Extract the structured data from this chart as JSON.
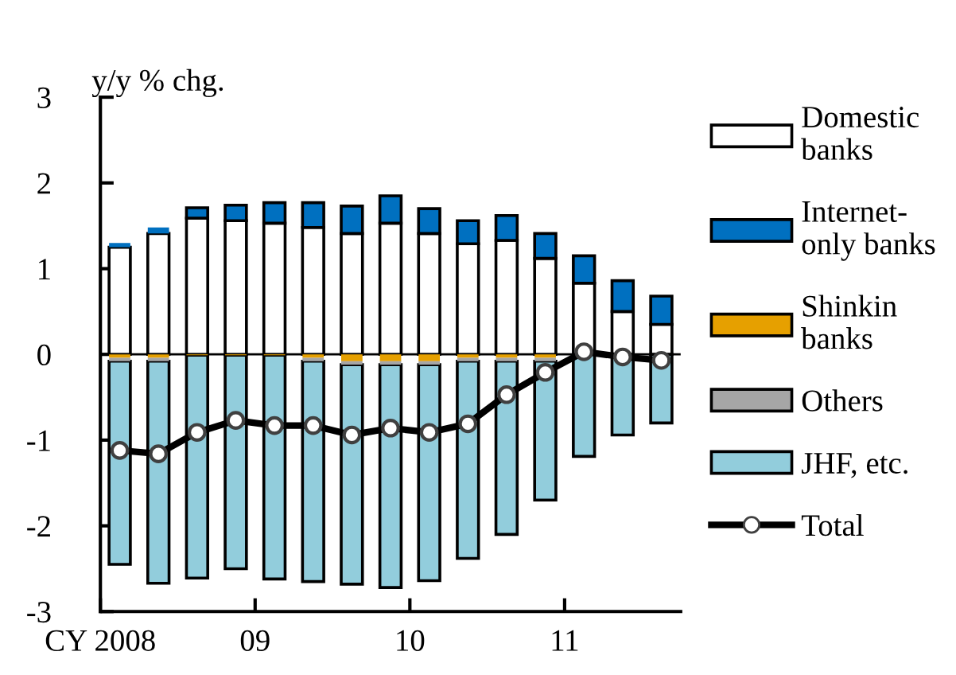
{
  "chart_data": {
    "type": "bar",
    "stacked": true,
    "ylabel": "y/y % chg.",
    "x": [
      2008.125,
      2008.375,
      2008.625,
      2008.875,
      2009.125,
      2009.375,
      2009.625,
      2009.875,
      2010.125,
      2010.375,
      2010.625,
      2010.875,
      2011.125,
      2011.375,
      2011.625
    ],
    "xlim": [
      2008,
      2011.75
    ],
    "xticks": [
      {
        "value": 2008,
        "label": "CY 2008"
      },
      {
        "value": 2009,
        "label": "09"
      },
      {
        "value": 2010,
        "label": "10"
      },
      {
        "value": 2011,
        "label": "11"
      }
    ],
    "ylim": [
      -3,
      3
    ],
    "yticks": [
      -3,
      -2,
      -1,
      0,
      1,
      2,
      3
    ],
    "grid": false,
    "legend": "right",
    "ref_lines": [
      {
        "axis": "y",
        "value": 0,
        "label": null
      }
    ],
    "series": [
      {
        "name": "Domestic\nbanks",
        "color": "#ffffff",
        "values": [
          1.25,
          1.41,
          1.59,
          1.56,
          1.53,
          1.48,
          1.41,
          1.53,
          1.41,
          1.29,
          1.33,
          1.12,
          0.83,
          0.5,
          0.35
        ]
      },
      {
        "name": "Internet-\nonly banks",
        "color": "#0070c0",
        "values": [
          0.05,
          0.07,
          0.12,
          0.18,
          0.24,
          0.29,
          0.32,
          0.32,
          0.29,
          0.27,
          0.29,
          0.29,
          0.32,
          0.36,
          0.33
        ]
      },
      {
        "name": "Shinkin\nbanks",
        "color": "#e6a000",
        "values": [
          -0.04,
          -0.04,
          -0.01,
          -0.01,
          -0.01,
          -0.04,
          -0.08,
          -0.08,
          -0.08,
          -0.04,
          -0.04,
          -0.04,
          null,
          null,
          null
        ]
      },
      {
        "name": "Others",
        "color": "#a6a6a6",
        "values": [
          -0.04,
          -0.04,
          null,
          null,
          null,
          -0.04,
          -0.04,
          -0.04,
          -0.04,
          -0.04,
          -0.04,
          -0.04,
          null,
          null,
          null
        ]
      },
      {
        "name": "JHF, etc.",
        "color": "#92cddc",
        "values": [
          -2.37,
          -2.59,
          -2.6,
          -2.49,
          -2.61,
          -2.57,
          -2.56,
          -2.6,
          -2.52,
          -2.3,
          -2.02,
          -1.62,
          -1.19,
          -0.94,
          -0.8
        ]
      },
      {
        "name": "Total",
        "type": "line",
        "color": "#000000",
        "marker": "circle",
        "line_style": "solid",
        "values": [
          -1.12,
          -1.16,
          -0.91,
          -0.77,
          -0.83,
          -0.83,
          -0.94,
          -0.86,
          -0.91,
          -0.81,
          -0.47,
          -0.21,
          0.03,
          -0.03,
          -0.07
        ]
      }
    ]
  }
}
